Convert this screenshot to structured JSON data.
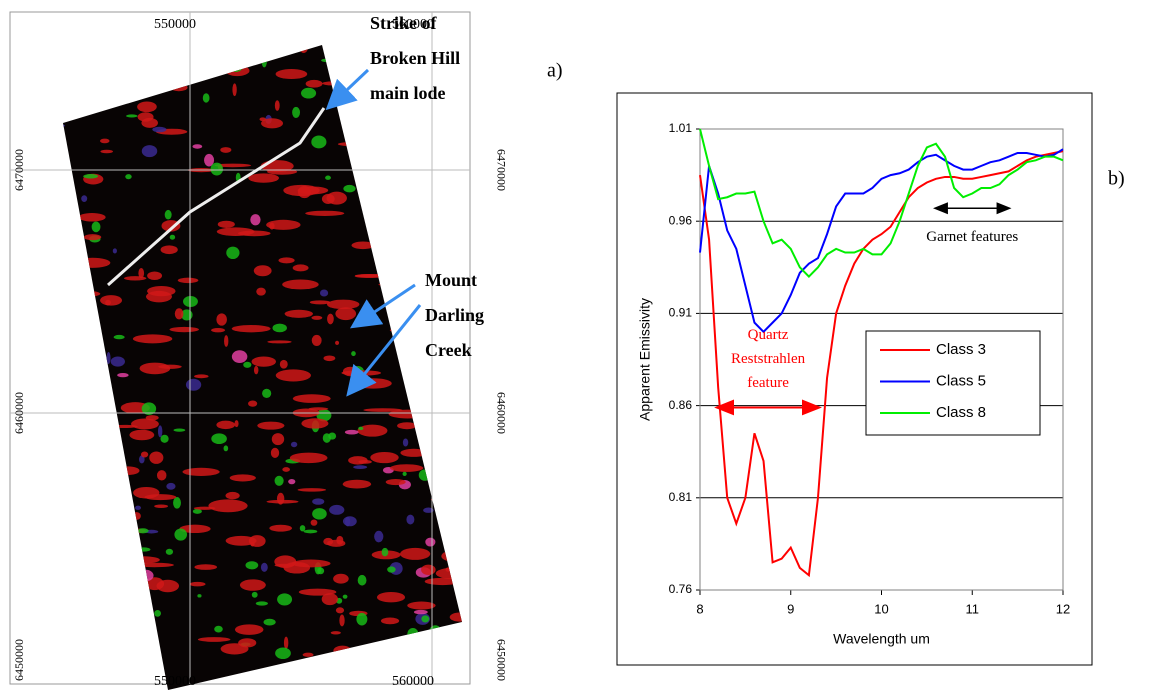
{
  "panel_labels": [
    "a)",
    "b)"
  ],
  "map": {
    "x_tick_labels": [
      "550000",
      "560000"
    ],
    "y_tick_labels": [
      "6470000",
      "6460000",
      "6450000"
    ],
    "annotations": [
      {
        "lines": [
          "Strike of",
          "Broken Hill",
          "main lode"
        ]
      },
      {
        "lines": [
          "Mount",
          "Darling",
          "Creek"
        ]
      }
    ]
  },
  "chart_data": {
    "type": "line",
    "x_label": "Wavelength um",
    "y_label": "Apparent Emissivity",
    "x": [
      8.0,
      8.1,
      8.2,
      8.3,
      8.4,
      8.5,
      8.6,
      8.7,
      8.8,
      8.9,
      9.0,
      9.1,
      9.2,
      9.3,
      9.4,
      9.5,
      9.6,
      9.7,
      9.8,
      9.9,
      10.0,
      10.1,
      10.2,
      10.3,
      10.4,
      10.5,
      10.6,
      10.7,
      10.8,
      10.9,
      11.0,
      11.1,
      11.2,
      11.3,
      11.4,
      11.5,
      11.6,
      11.7,
      11.8,
      11.9,
      12.0
    ],
    "series": [
      {
        "name": "Class 3",
        "color": "#ff0000",
        "values": [
          0.985,
          0.95,
          0.87,
          0.81,
          0.796,
          0.81,
          0.845,
          0.83,
          0.775,
          0.777,
          0.783,
          0.772,
          0.768,
          0.81,
          0.875,
          0.91,
          0.925,
          0.937,
          0.945,
          0.95,
          0.953,
          0.957,
          0.965,
          0.973,
          0.978,
          0.981,
          0.983,
          0.984,
          0.984,
          0.983,
          0.983,
          0.984,
          0.985,
          0.986,
          0.987,
          0.99,
          0.993,
          0.995,
          0.996,
          0.997,
          0.998
        ]
      },
      {
        "name": "Class 5",
        "color": "#0000ff",
        "values": [
          0.943,
          0.99,
          0.975,
          0.955,
          0.945,
          0.925,
          0.905,
          0.9,
          0.905,
          0.91,
          0.92,
          0.932,
          0.937,
          0.94,
          0.953,
          0.968,
          0.975,
          0.975,
          0.975,
          0.978,
          0.983,
          0.985,
          0.986,
          0.988,
          0.992,
          0.995,
          0.996,
          0.993,
          0.99,
          0.988,
          0.988,
          0.99,
          0.992,
          0.993,
          0.995,
          0.997,
          0.997,
          0.996,
          0.995,
          0.996,
          0.999
        ]
      },
      {
        "name": "Class 8",
        "color": "#00ee00",
        "values": [
          1.01,
          0.99,
          0.972,
          0.973,
          0.975,
          0.975,
          0.976,
          0.96,
          0.948,
          0.95,
          0.945,
          0.935,
          0.93,
          0.935,
          0.942,
          0.945,
          0.943,
          0.943,
          0.945,
          0.942,
          0.942,
          0.948,
          0.96,
          0.975,
          0.99,
          1.0,
          1.002,
          0.995,
          0.978,
          0.973,
          0.975,
          0.978,
          0.978,
          0.98,
          0.985,
          0.988,
          0.992,
          0.993,
          0.995,
          0.995,
          0.993
        ]
      }
    ],
    "xlim": [
      8,
      12
    ],
    "xticks": [
      8,
      9,
      10,
      11,
      12
    ],
    "ylim": [
      0.76,
      1.01
    ],
    "yticks": [
      0.76,
      0.81,
      0.86,
      0.91,
      0.96,
      1.01
    ],
    "grid": true,
    "annotations": [
      {
        "lines": [
          "Garnet features"
        ],
        "color": "#000000"
      },
      {
        "lines": [
          "Quartz",
          "Reststrahlen",
          "feature"
        ],
        "color": "#ff0000"
      }
    ]
  }
}
